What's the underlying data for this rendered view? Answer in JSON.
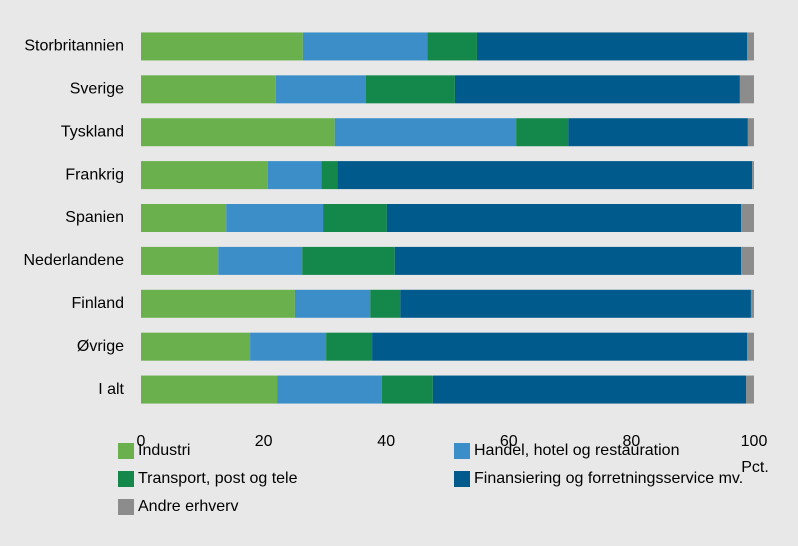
{
  "chart_data": {
    "type": "bar",
    "orientation": "horizontal",
    "stacked": true,
    "categories": [
      "Storbritannien",
      "Sverige",
      "Tyskland",
      "Frankrig",
      "Spanien",
      "Nederlandene",
      "Finland",
      "Øvrige",
      "I alt"
    ],
    "series": [
      {
        "name": "Industri",
        "color": "#6ab04c",
        "values": [
          26.4,
          22.0,
          31.6,
          20.7,
          13.9,
          12.6,
          25.1,
          17.8,
          22.2
        ]
      },
      {
        "name": "Handel, hotel og restauration",
        "color": "#3b8ec8",
        "values": [
          20.3,
          14.7,
          29.6,
          8.7,
          15.8,
          13.7,
          12.3,
          12.4,
          17.1
        ]
      },
      {
        "name": "Transport, post og tele",
        "color": "#14884a",
        "values": [
          8.1,
          14.5,
          8.5,
          2.6,
          10.4,
          15.1,
          4.9,
          7.5,
          8.3
        ]
      },
      {
        "name": "Finansiering og forretningsservice mv.",
        "color": "#005a8c",
        "values": [
          44.1,
          46.5,
          29.3,
          67.7,
          57.8,
          56.5,
          57.2,
          61.2,
          51.1
        ]
      },
      {
        "name": "Andre erhverv",
        "color": "#8c8c8c",
        "values": [
          1.1,
          2.3,
          1.0,
          0.3,
          2.1,
          2.1,
          0.5,
          1.1,
          1.3
        ]
      }
    ],
    "xlabel": "Pct.",
    "xlim": [
      0,
      100
    ],
    "xticks": [
      0,
      20,
      40,
      60,
      80,
      100
    ],
    "grid": false,
    "legend": "bottom"
  }
}
